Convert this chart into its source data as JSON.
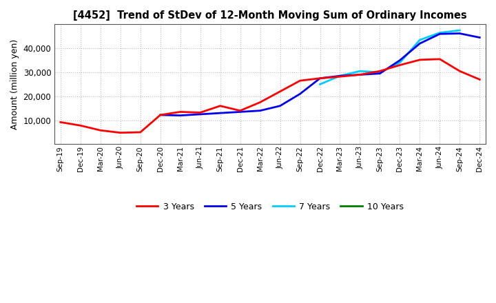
{
  "title": "[4452]  Trend of StDev of 12-Month Moving Sum of Ordinary Incomes",
  "ylabel": "Amount (million yen)",
  "background_color": "#ffffff",
  "grid_color": "#bbbbbb",
  "legend_entries": [
    "3 Years",
    "5 Years",
    "7 Years",
    "10 Years"
  ],
  "legend_colors": [
    "#ff0000",
    "#0000ee",
    "#00ccff",
    "#008000"
  ],
  "x_labels": [
    "Sep-19",
    "Dec-19",
    "Mar-20",
    "Jun-20",
    "Sep-20",
    "Dec-20",
    "Mar-21",
    "Jun-21",
    "Sep-21",
    "Dec-21",
    "Mar-22",
    "Jun-22",
    "Sep-22",
    "Dec-22",
    "Mar-23",
    "Jun-23",
    "Sep-23",
    "Dec-23",
    "Mar-24",
    "Jun-24",
    "Sep-24",
    "Dec-24"
  ],
  "ylim": [
    0,
    50000
  ],
  "yticks": [
    10000,
    20000,
    30000,
    40000
  ],
  "series_3y": [
    9200,
    7800,
    5800,
    4800,
    5000,
    12200,
    13500,
    13200,
    16000,
    14000,
    17500,
    22000,
    26500,
    27500,
    28200,
    29000,
    30500,
    33000,
    35200,
    35500,
    30500,
    27000
  ],
  "series_5y": [
    null,
    null,
    null,
    null,
    null,
    12200,
    12000,
    12500,
    13000,
    13500,
    14000,
    16000,
    21000,
    27500,
    28500,
    29000,
    29500,
    35000,
    42000,
    46000,
    46200,
    44500
  ],
  "series_7y": [
    null,
    null,
    null,
    null,
    null,
    null,
    null,
    null,
    null,
    null,
    null,
    null,
    null,
    25000,
    28500,
    30500,
    30000,
    34000,
    43500,
    46500,
    47500,
    null
  ],
  "series_10y": [
    null,
    null,
    null,
    null,
    null,
    null,
    null,
    null,
    null,
    null,
    null,
    null,
    null,
    null,
    null,
    null,
    null,
    null,
    null,
    null,
    null,
    null
  ]
}
